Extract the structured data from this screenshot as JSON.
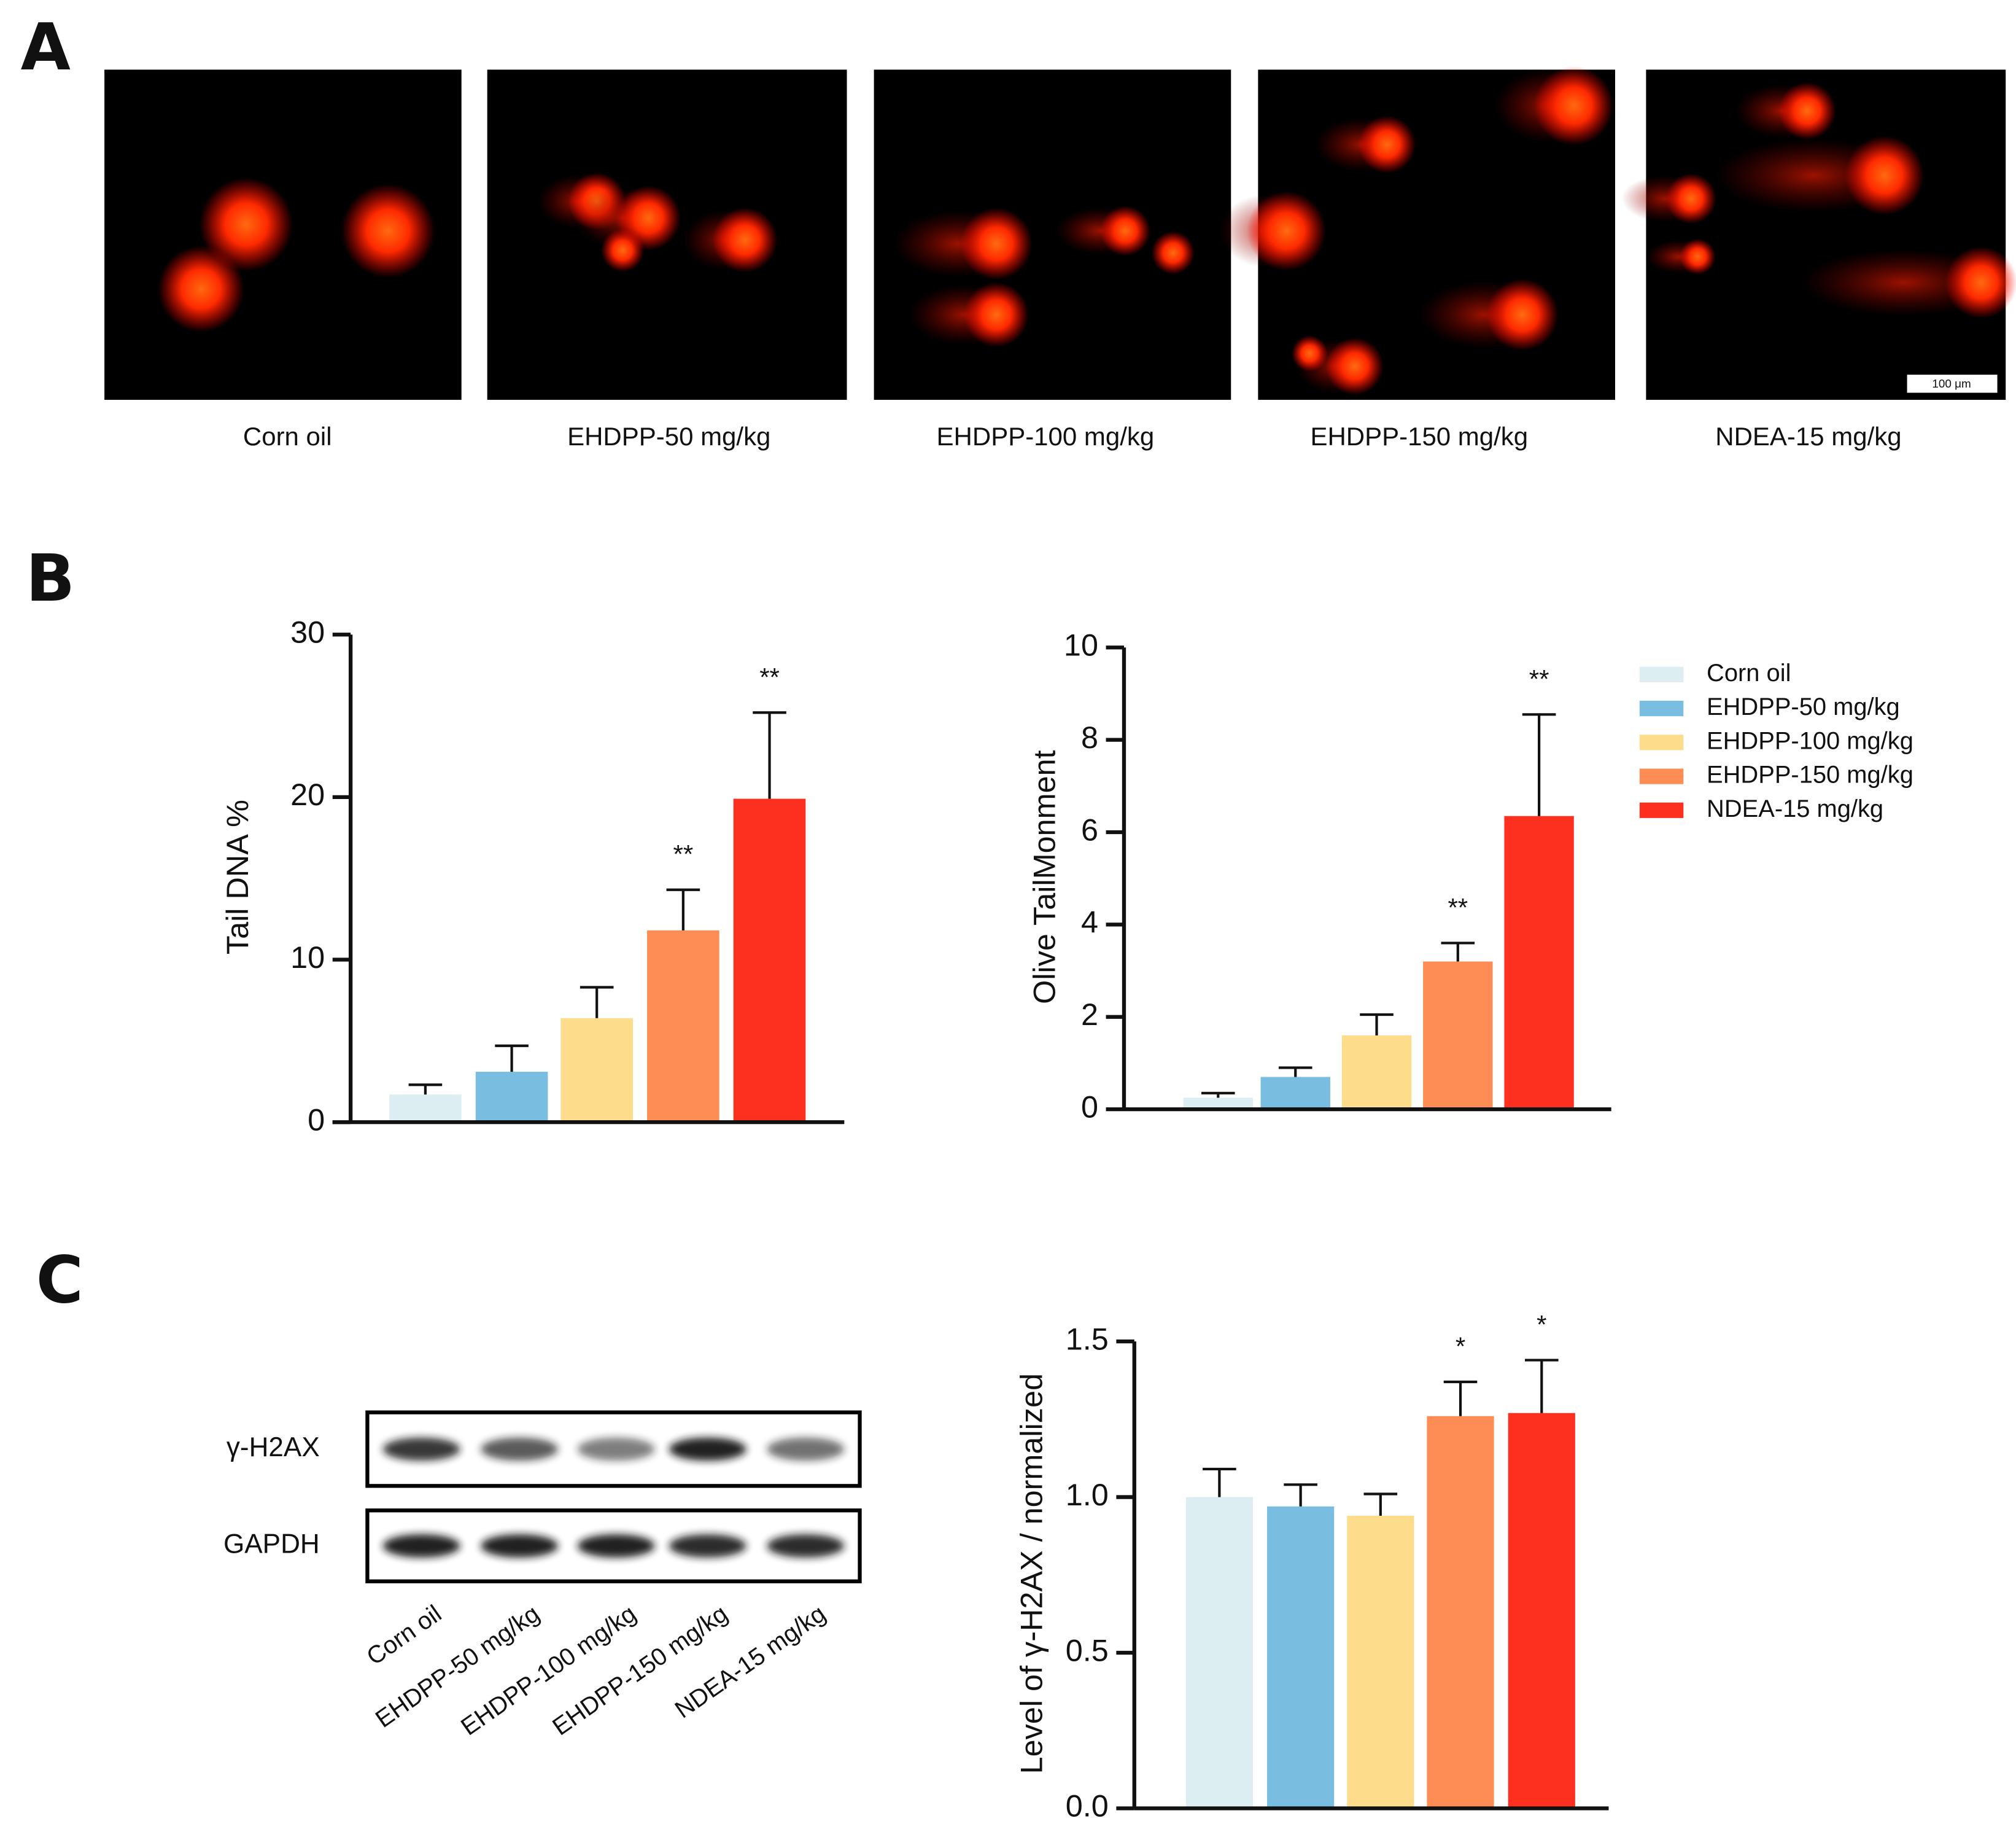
{
  "panels": [
    "A",
    "B",
    "C"
  ],
  "comet_images": {
    "captions": [
      "Corn oil",
      "EHDPP-50 mg/kg",
      "EHDPP-100 mg/kg",
      "EHDPP-150 mg/kg",
      "NDEA-15 mg/kg"
    ],
    "scale_bar": "100 μm"
  },
  "blot": {
    "rows": [
      "γ-H2AX",
      "GAPDH"
    ],
    "lanes": [
      "Corn oil",
      "EHDPP-50 mg/kg",
      "EHDPP-100 mg/kg",
      "EHDPP-150 mg/kg",
      "NDEA-15 mg/kg"
    ]
  },
  "chart_data": [
    {
      "type": "bar",
      "ylabel": "Tail DNA %",
      "ylim": [
        0,
        30
      ],
      "yticks": [
        0,
        10,
        20,
        30
      ],
      "values": [
        1.7,
        3.1,
        6.4,
        11.8,
        19.9
      ],
      "errors": [
        0.6,
        1.6,
        1.9,
        2.5,
        5.3
      ],
      "colors": [
        "#ddeef3",
        "#79bde0",
        "#fddc8c",
        "#fd8c55",
        "#fd3020"
      ],
      "significance": [
        null,
        null,
        null,
        "**",
        "**"
      ]
    },
    {
      "type": "bar",
      "ylabel": "Olive TailMonment",
      "ylim": [
        0,
        10
      ],
      "yticks": [
        0,
        2,
        4,
        6,
        8,
        10
      ],
      "values": [
        0.25,
        0.7,
        1.6,
        3.2,
        6.35
      ],
      "errors": [
        0.1,
        0.2,
        0.45,
        0.4,
        2.2
      ],
      "colors": [
        "#ddeef3",
        "#79bde0",
        "#fddc8c",
        "#fd8c55",
        "#fd3020"
      ],
      "significance": [
        null,
        null,
        null,
        "**",
        "**"
      ],
      "categories": [
        "Corn oil",
        "EHDPP-50 mg/kg",
        "EHDPP-100 mg/kg",
        "EHDPP-150 mg/kg",
        "NDEA-15 mg/kg"
      ],
      "legend": "right"
    },
    {
      "type": "bar",
      "ylabel": "Level of γ-H2AX / normalized",
      "ylim": [
        0,
        1.5
      ],
      "yticks": [
        {
          "value": 0,
          "label": "0.0"
        },
        0.5,
        {
          "value": 1,
          "label": "1.0"
        },
        1.5
      ],
      "values": [
        1.0,
        0.97,
        0.94,
        1.26,
        1.27
      ],
      "errors": [
        0.09,
        0.07,
        0.07,
        0.11,
        0.17
      ],
      "colors": [
        "#ddeef3",
        "#79bde0",
        "#fddc8c",
        "#fd8c55",
        "#fd3020"
      ],
      "significance": [
        null,
        null,
        null,
        "*",
        "*"
      ]
    }
  ]
}
